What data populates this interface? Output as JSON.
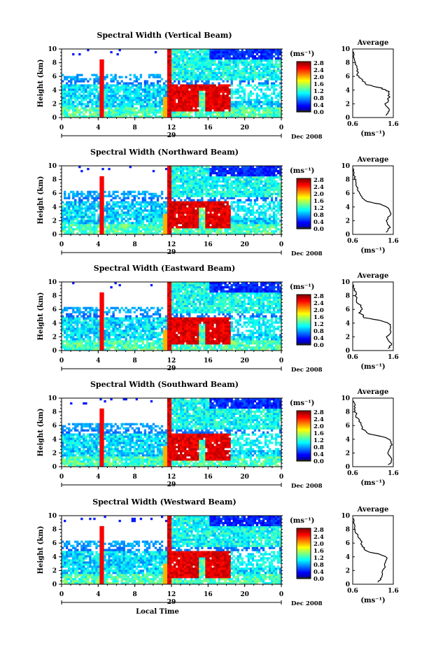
{
  "chart_data": [
    {
      "type": "heatmap",
      "title": "Spectral Width (Vertical Beam)",
      "ylabel": "Height (km)",
      "yticks": [
        "0",
        "2",
        "4",
        "6",
        "8",
        "10"
      ],
      "xticks": [
        "0",
        "4",
        "8",
        "12",
        "16",
        "20",
        "0"
      ],
      "date_day": "29",
      "date_label": "Dec 2008",
      "colorbar_unit": "(ms⁻¹)",
      "colorbar_ticks": [
        "0.0",
        "0.4",
        "0.8",
        "1.2",
        "1.6",
        "2.0",
        "2.4",
        "2.8"
      ],
      "avg_title": "Average",
      "avg_xticks": [
        "0.6",
        "1.6"
      ],
      "avg_yticks": [
        "0",
        "2",
        "4",
        "6",
        "8",
        "10"
      ],
      "avg_xlabel": "(ms⁻¹)",
      "avg_profile": {
        "height_km": [
          0.3,
          1.0,
          2.0,
          3.0,
          3.8,
          4.3,
          4.8,
          5.5,
          6.2,
          7.0,
          8.0,
          8.8,
          9.6
        ],
        "width_ms": [
          1.45,
          1.5,
          1.42,
          1.5,
          1.48,
          1.3,
          0.95,
          0.82,
          0.72,
          0.72,
          0.66,
          0.64,
          0.62
        ]
      }
    },
    {
      "type": "heatmap",
      "title": "Spectral Width (Northward Beam)",
      "ylabel": "Height (km)",
      "yticks": [
        "0",
        "2",
        "4",
        "6",
        "8",
        "10"
      ],
      "xticks": [
        "0",
        "4",
        "8",
        "12",
        "16",
        "20",
        "0"
      ],
      "date_day": "29",
      "date_label": "Dec 2008",
      "colorbar_unit": "(ms⁻¹)",
      "colorbar_ticks": [
        "0.0",
        "0.4",
        "0.8",
        "1.2",
        "1.6",
        "2.0",
        "2.4",
        "2.8"
      ],
      "avg_title": "Average",
      "avg_xticks": [
        "0.6",
        "1.6"
      ],
      "avg_yticks": [
        "0",
        "2",
        "4",
        "6",
        "8",
        "10"
      ],
      "avg_xlabel": "(ms⁻¹)",
      "avg_profile": {
        "height_km": [
          0.3,
          1.0,
          2.0,
          3.0,
          3.8,
          4.3,
          4.8,
          5.5,
          6.2,
          7.0,
          8.0,
          8.8,
          9.6
        ],
        "width_ms": [
          1.45,
          1.52,
          1.42,
          1.52,
          1.5,
          1.35,
          0.95,
          0.8,
          0.75,
          0.7,
          0.66,
          0.64,
          0.62
        ]
      }
    },
    {
      "type": "heatmap",
      "title": "Spectral Width (Eastward Beam)",
      "ylabel": "Height (km)",
      "yticks": [
        "0",
        "2",
        "4",
        "6",
        "8",
        "10"
      ],
      "xticks": [
        "0",
        "4",
        "8",
        "12",
        "16",
        "20",
        "0"
      ],
      "date_day": "29",
      "date_label": "Dec 2008",
      "colorbar_unit": "(ms⁻¹)",
      "colorbar_ticks": [
        "0.0",
        "0.4",
        "0.8",
        "1.2",
        "1.6",
        "2.0",
        "2.4",
        "2.8"
      ],
      "avg_title": "Average",
      "avg_xticks": [
        "0.6",
        "1.6"
      ],
      "avg_yticks": [
        "0",
        "2",
        "4",
        "6",
        "8",
        "10"
      ],
      "avg_xlabel": "(ms⁻¹)",
      "avg_profile": {
        "height_km": [
          0.3,
          1.0,
          2.0,
          3.0,
          3.8,
          4.3,
          4.8,
          5.5,
          6.2,
          7.0,
          8.0,
          8.8,
          9.6
        ],
        "width_ms": [
          1.5,
          1.55,
          1.45,
          1.55,
          1.52,
          1.35,
          0.9,
          0.78,
          0.85,
          0.72,
          0.68,
          0.64,
          0.62
        ]
      }
    },
    {
      "type": "heatmap",
      "title": "Spectral Width (Southward Beam)",
      "ylabel": "Height (km)",
      "yticks": [
        "0",
        "2",
        "4",
        "6",
        "8",
        "10"
      ],
      "xticks": [
        "0",
        "4",
        "8",
        "12",
        "16",
        "20",
        "0"
      ],
      "date_day": "29",
      "date_label": "Dec 2008",
      "colorbar_unit": "(ms⁻¹)",
      "colorbar_ticks": [
        "0.0",
        "0.4",
        "0.8",
        "1.2",
        "1.6",
        "2.0",
        "2.4",
        "2.8"
      ],
      "avg_title": "Average",
      "avg_xticks": [
        "0.6",
        "1.6"
      ],
      "avg_yticks": [
        "0",
        "2",
        "4",
        "6",
        "8",
        "10"
      ],
      "avg_xlabel": "(ms⁻¹)",
      "avg_profile": {
        "height_km": [
          0.3,
          1.0,
          2.0,
          3.0,
          3.8,
          4.3,
          4.8,
          5.5,
          6.2,
          7.0,
          8.0,
          8.8,
          9.6
        ],
        "width_ms": [
          1.5,
          1.55,
          1.45,
          1.55,
          1.55,
          1.4,
          1.0,
          0.85,
          0.8,
          0.72,
          0.66,
          0.64,
          0.62
        ]
      }
    },
    {
      "type": "heatmap",
      "title": "Spectral Width (Westward Beam)",
      "ylabel": "Height (km)",
      "yticks": [
        "0",
        "2",
        "4",
        "6",
        "8",
        "10"
      ],
      "xticks": [
        "0",
        "4",
        "8",
        "12",
        "16",
        "20",
        "0"
      ],
      "date_day": "29",
      "date_label": "Dec 2008",
      "xlabel": "Local Time",
      "colorbar_unit": "(ms⁻¹)",
      "colorbar_ticks": [
        "0.0",
        "0.4",
        "0.8",
        "1.2",
        "1.6",
        "2.0",
        "2.4",
        "2.8"
      ],
      "avg_title": "Average",
      "avg_xticks": [
        "0.6",
        "1.6"
      ],
      "avg_yticks": [
        "0",
        "2",
        "4",
        "6",
        "8",
        "10"
      ],
      "avg_xlabel": "(ms⁻¹)",
      "avg_profile": {
        "height_km": [
          0.3,
          1.0,
          2.0,
          3.0,
          3.8,
          4.3,
          4.8,
          5.5,
          6.2,
          7.0,
          8.0,
          8.8,
          9.6
        ],
        "width_ms": [
          1.25,
          1.3,
          1.35,
          1.4,
          1.45,
          1.3,
          0.95,
          0.85,
          0.8,
          0.72,
          0.66,
          0.64,
          0.62
        ]
      }
    }
  ]
}
